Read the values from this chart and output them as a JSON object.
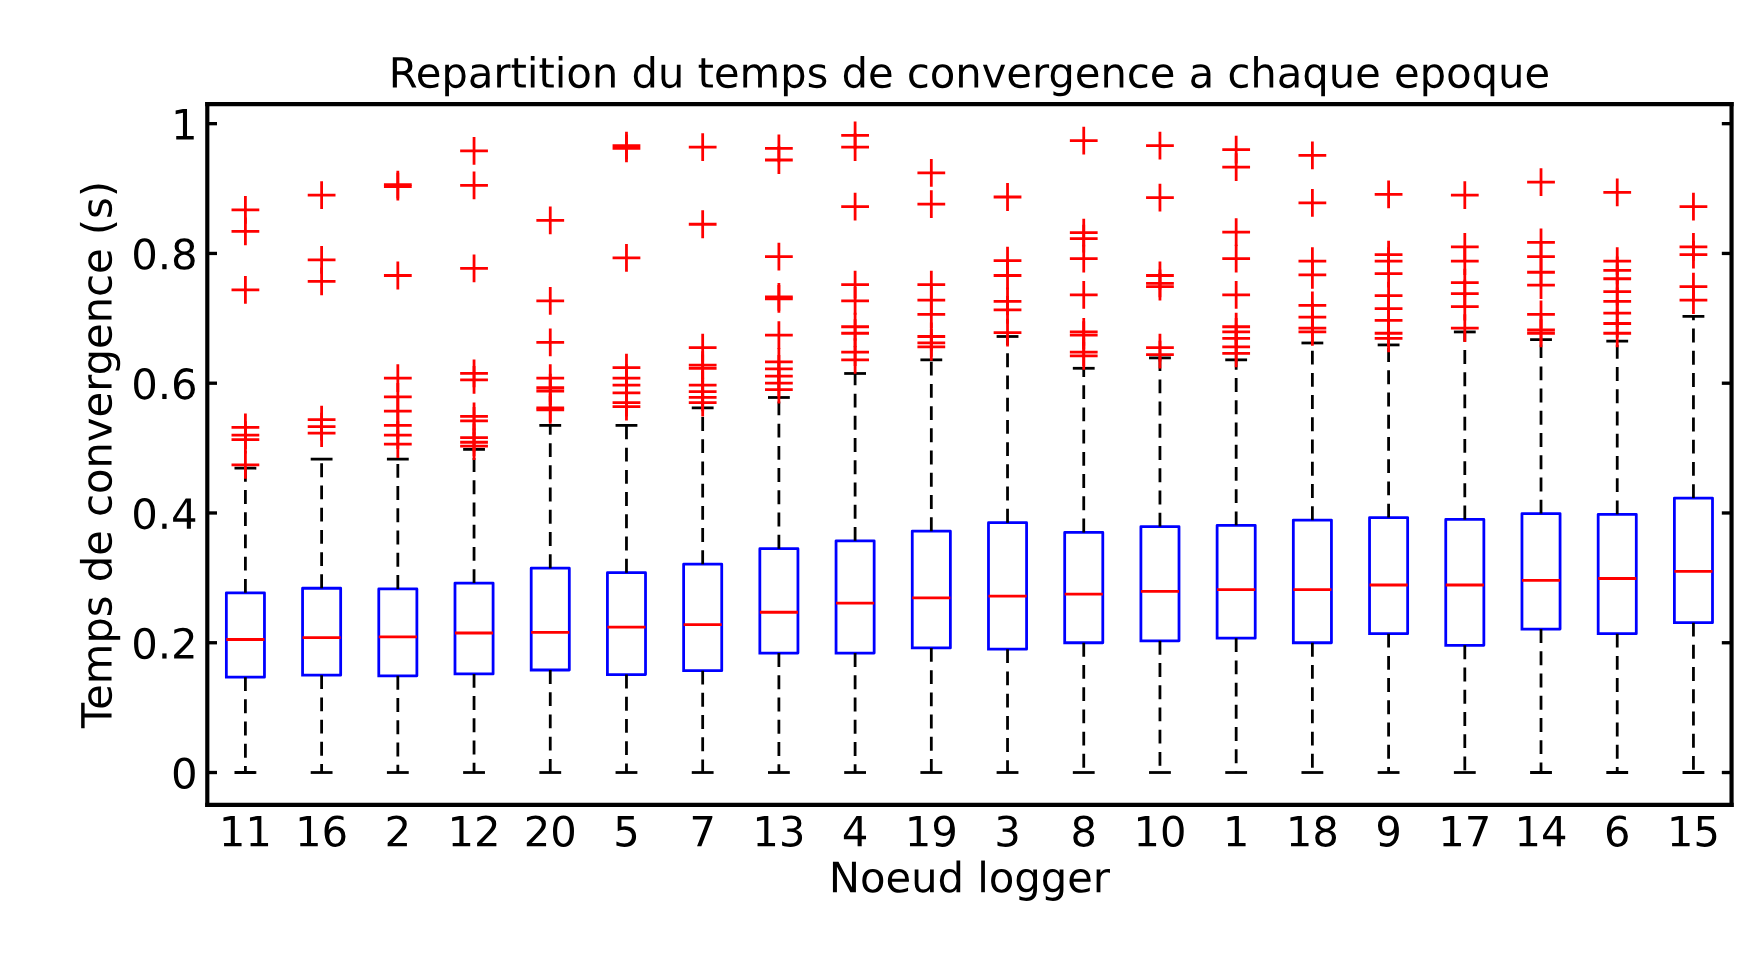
{
  "chart_data": {
    "type": "box",
    "title": "Repartition du temps de convergence a chaque epoque",
    "xlabel": "Noeud logger",
    "ylabel": "Temps de convergence (s)",
    "categories": [
      "11",
      "16",
      "2",
      "12",
      "20",
      "5",
      "7",
      "13",
      "4",
      "19",
      "3",
      "8",
      "10",
      "1",
      "18",
      "9",
      "17",
      "14",
      "6",
      "15"
    ],
    "ylim": [
      -0.05,
      1.03
    ],
    "yticks": [
      0,
      0.2,
      0.4,
      0.6,
      0.8,
      1
    ],
    "grid": false,
    "legend": false,
    "line_style": "dashed",
    "marker": "cross",
    "color": "#0000ff",
    "boxes": [
      {
        "low": 0,
        "q1": 0.147,
        "median": 0.205,
        "q3": 0.277,
        "high": 0.469,
        "outliers": [
          0.532,
          0.52,
          0.513,
          0.474,
          0.744,
          0.834,
          0.867
        ]
      },
      {
        "low": 0,
        "q1": 0.15,
        "median": 0.208,
        "q3": 0.284,
        "high": 0.483,
        "outliers": [
          0.544,
          0.533,
          0.523,
          0.89,
          0.79,
          0.757
        ]
      },
      {
        "low": 0,
        "q1": 0.149,
        "median": 0.209,
        "q3": 0.283,
        "high": 0.483,
        "outliers": [
          0.906,
          0.903,
          0.766,
          0.608,
          0.579,
          0.557,
          0.535,
          0.52,
          0.506
        ]
      },
      {
        "low": 0,
        "q1": 0.152,
        "median": 0.215,
        "q3": 0.292,
        "high": 0.498,
        "outliers": [
          0.958,
          0.905,
          0.777,
          0.615,
          0.605,
          0.549,
          0.542,
          0.516,
          0.509,
          0.503
        ]
      },
      {
        "low": 0,
        "q1": 0.158,
        "median": 0.216,
        "q3": 0.315,
        "high": 0.535,
        "outliers": [
          0.851,
          0.727,
          0.663,
          0.608,
          0.593,
          0.588,
          0.562,
          0.559
        ]
      },
      {
        "low": 0,
        "q1": 0.151,
        "median": 0.224,
        "q3": 0.308,
        "high": 0.535,
        "outliers": [
          0.966,
          0.962,
          0.793,
          0.624,
          0.608,
          0.597,
          0.585,
          0.57,
          0.564
        ]
      },
      {
        "low": 0,
        "q1": 0.157,
        "median": 0.228,
        "q3": 0.321,
        "high": 0.562,
        "outliers": [
          0.964,
          0.845,
          0.655,
          0.628,
          0.623,
          0.597,
          0.587,
          0.578,
          0.57
        ]
      },
      {
        "low": 0,
        "q1": 0.184,
        "median": 0.247,
        "q3": 0.345,
        "high": 0.578,
        "outliers": [
          0.962,
          0.944,
          0.795,
          0.733,
          0.73,
          0.674,
          0.633,
          0.622,
          0.611,
          0.6,
          0.59
        ]
      },
      {
        "low": 0,
        "q1": 0.184,
        "median": 0.261,
        "q3": 0.357,
        "high": 0.615,
        "outliers": [
          0.982,
          0.964,
          0.872,
          0.752,
          0.727,
          0.687,
          0.677,
          0.648,
          0.636
        ]
      },
      {
        "low": 0,
        "q1": 0.192,
        "median": 0.269,
        "q3": 0.372,
        "high": 0.636,
        "outliers": [
          0.924,
          0.876,
          0.752,
          0.728,
          0.706,
          0.672,
          0.662,
          0.656
        ]
      },
      {
        "low": 0,
        "q1": 0.19,
        "median": 0.272,
        "q3": 0.385,
        "high": 0.672,
        "outliers": [
          0.887,
          0.789,
          0.766,
          0.726,
          0.713,
          0.678
        ]
      },
      {
        "low": 0,
        "q1": 0.2,
        "median": 0.275,
        "q3": 0.37,
        "high": 0.623,
        "outliers": [
          0.974,
          0.832,
          0.823,
          0.792,
          0.736,
          0.679,
          0.674,
          0.648,
          0.642
        ]
      },
      {
        "low": 0,
        "q1": 0.203,
        "median": 0.279,
        "q3": 0.379,
        "high": 0.639,
        "outliers": [
          0.966,
          0.886,
          0.766,
          0.754,
          0.749,
          0.655,
          0.644
        ]
      },
      {
        "low": 0,
        "q1": 0.207,
        "median": 0.282,
        "q3": 0.381,
        "high": 0.636,
        "outliers": [
          0.96,
          0.933,
          0.833,
          0.792,
          0.736,
          0.687,
          0.679,
          0.669,
          0.656,
          0.646
        ]
      },
      {
        "low": 0,
        "q1": 0.2,
        "median": 0.282,
        "q3": 0.389,
        "high": 0.662,
        "outliers": [
          0.951,
          0.878,
          0.788,
          0.767,
          0.72,
          0.702,
          0.685,
          0.679
        ]
      },
      {
        "low": 0,
        "q1": 0.214,
        "median": 0.289,
        "q3": 0.393,
        "high": 0.659,
        "outliers": [
          0.891,
          0.798,
          0.788,
          0.769,
          0.735,
          0.715,
          0.697,
          0.677,
          0.669
        ]
      },
      {
        "low": 0,
        "q1": 0.196,
        "median": 0.289,
        "q3": 0.39,
        "high": 0.679,
        "outliers": [
          0.89,
          0.81,
          0.788,
          0.755,
          0.738,
          0.718,
          0.685
        ]
      },
      {
        "low": 0,
        "q1": 0.221,
        "median": 0.296,
        "q3": 0.399,
        "high": 0.667,
        "outliers": [
          0.91,
          0.817,
          0.795,
          0.771,
          0.751,
          0.706,
          0.682,
          0.677
        ]
      },
      {
        "low": 0,
        "q1": 0.214,
        "median": 0.299,
        "q3": 0.398,
        "high": 0.665,
        "outliers": [
          0.894,
          0.788,
          0.774,
          0.761,
          0.741,
          0.726,
          0.708,
          0.692,
          0.677
        ]
      },
      {
        "low": 0,
        "q1": 0.231,
        "median": 0.31,
        "q3": 0.423,
        "high": 0.703,
        "outliers": [
          0.872,
          0.81,
          0.798,
          0.749,
          0.728
        ]
      }
    ]
  }
}
